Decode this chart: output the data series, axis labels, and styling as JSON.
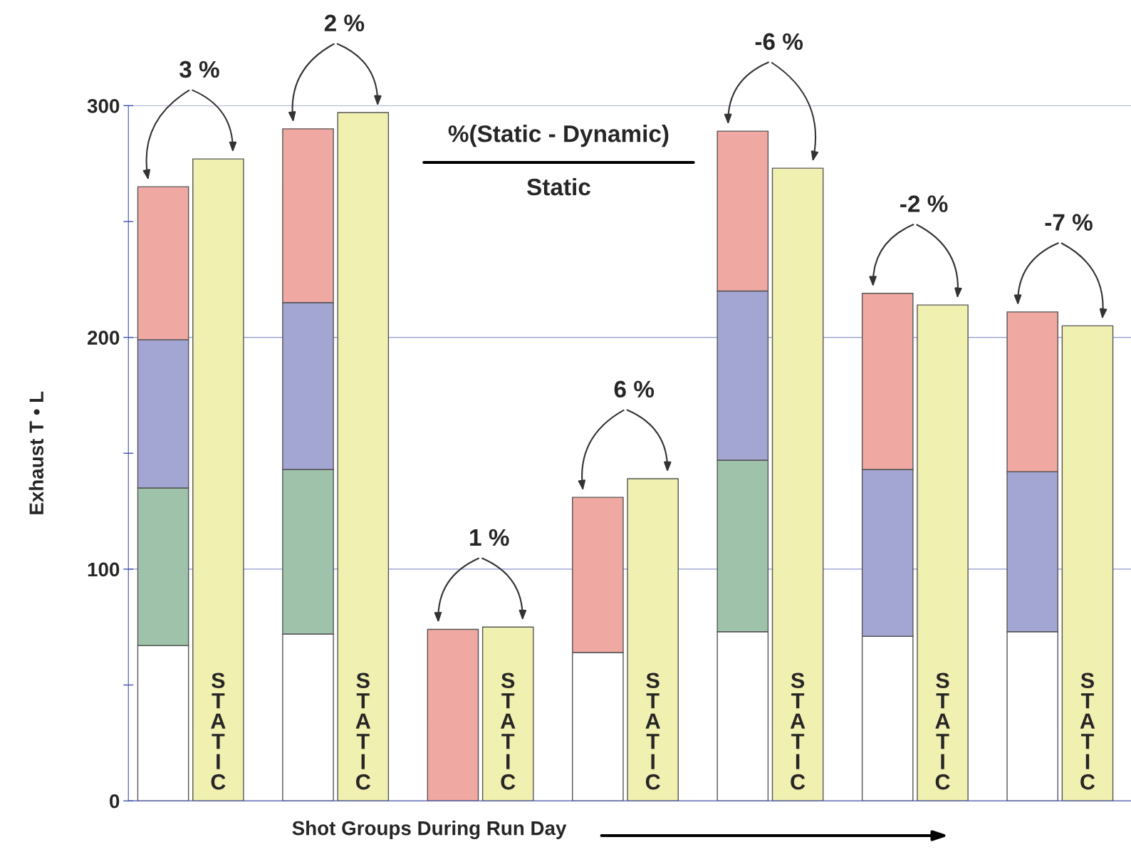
{
  "chart_data": {
    "type": "bar",
    "stacked": true,
    "xlabel": "Shot Groups During Run Day",
    "ylabel": "Exhaust T • L",
    "categories": [
      null,
      null,
      null,
      null,
      null,
      null,
      null,
      null,
      null,
      null,
      null,
      null,
      null,
      null
    ],
    "series": [
      {
        "color": "#ffffff",
        "values": [
          67,
          null,
          72,
          null,
          null,
          null,
          64,
          null,
          73,
          null,
          71,
          null,
          73,
          null
        ]
      },
      {
        "color": "#9fc2aa",
        "values": [
          68,
          null,
          71,
          null,
          null,
          null,
          null,
          null,
          74,
          null,
          null,
          null,
          null,
          null
        ]
      },
      {
        "color": "#a3a6d3",
        "values": [
          64,
          null,
          72,
          null,
          null,
          null,
          null,
          null,
          73,
          null,
          72,
          null,
          69,
          null
        ]
      },
      {
        "color": "#f0a8a3",
        "values": [
          66,
          null,
          75,
          null,
          74,
          null,
          67,
          null,
          69,
          null,
          76,
          null,
          69,
          null
        ]
      },
      {
        "color": "#f0f0b0",
        "values": [
          null,
          277,
          null,
          297,
          null,
          75,
          null,
          139,
          null,
          273,
          null,
          214,
          null,
          205
        ],
        "value_labels": [
          null,
          "STATIC",
          null,
          "STATIC",
          null,
          "STATIC",
          null,
          "STATIC",
          null,
          "STATIC",
          null,
          "STATIC",
          null,
          "STATIC"
        ]
      }
    ],
    "ylim": [
      0,
      300
    ],
    "yticks": [
      0,
      {
        "value": 50,
        "label": null
      },
      100,
      {
        "value": 150,
        "label": null
      },
      200,
      {
        "value": 250,
        "label": null
      },
      300
    ],
    "grid": "y",
    "legend": false,
    "annotations": [
      "3 %",
      "2 %",
      "1 %",
      "6 %",
      "-6 %",
      "-2 %",
      "-7 %",
      "%(Static - Dynamic)",
      "Static"
    ]
  }
}
